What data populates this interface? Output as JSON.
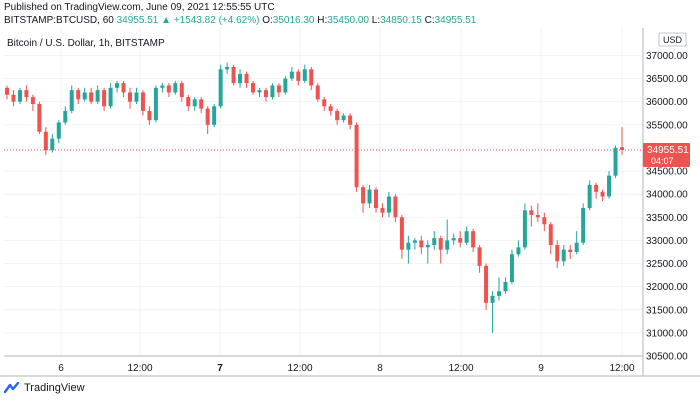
{
  "header": {
    "published": "Published on TradingView.com, June 09, 2021 12:55:55 UTC",
    "symbol_interval": "BITSTAMP:BTCUSD, 60",
    "last": "34955.51",
    "change_arrow": "▲",
    "change": "+1543.82 (+4.62%)",
    "open_label": "O:",
    "open": "35016.30",
    "high_label": "H:",
    "high": "35450.00",
    "low_label": "L:",
    "low": "34850.15",
    "close_label": "C:",
    "close": "34955.51"
  },
  "chart_title": "Bitcoin / U.S. Dollar, 1h, BITSTAMP",
  "footer": {
    "brand": "TradingView",
    "logo_icon": "tradingview-logo-icon"
  },
  "colors": {
    "up": "#26a69a",
    "down": "#ef5350",
    "price_tag": "#ef5350",
    "grid": "#f0f3fa",
    "axis_text": "#131722"
  },
  "chart_data": {
    "type": "candlestick",
    "title": "Bitcoin / U.S. Dollar, 1h, BITSTAMP",
    "currency_label": "USD",
    "ylim": [
      30500,
      37500
    ],
    "y_ticks": [
      "37000.00",
      "36500.00",
      "36000.00",
      "35500.00",
      "35000.00",
      "34500.00",
      "34000.00",
      "33500.00",
      "33000.00",
      "32500.00",
      "32000.00",
      "31500.00",
      "31000.00",
      "30500.00"
    ],
    "x_ticks": [
      "6",
      "12:00",
      "7",
      "12:00",
      "8",
      "12:00",
      "9",
      "12:00"
    ],
    "x_tick_bold": [
      false,
      false,
      true,
      false,
      false,
      false,
      false,
      false
    ],
    "last_price": "34955.51",
    "countdown": "04:07",
    "candles": [
      {
        "o": 36300,
        "c": 36150,
        "h": 36350,
        "l": 36050
      },
      {
        "o": 36150,
        "c": 36000,
        "h": 36250,
        "l": 35900
      },
      {
        "o": 36000,
        "c": 36250,
        "h": 36300,
        "l": 35950
      },
      {
        "o": 36250,
        "c": 36100,
        "h": 36350,
        "l": 36000
      },
      {
        "o": 36100,
        "c": 35950,
        "h": 36150,
        "l": 35800
      },
      {
        "o": 35950,
        "c": 35350,
        "h": 36000,
        "l": 35300
      },
      {
        "o": 35350,
        "c": 34950,
        "h": 35450,
        "l": 34850
      },
      {
        "o": 34950,
        "c": 35200,
        "h": 35300,
        "l": 34900
      },
      {
        "o": 35200,
        "c": 35550,
        "h": 35600,
        "l": 35100
      },
      {
        "o": 35550,
        "c": 35800,
        "h": 35900,
        "l": 35500
      },
      {
        "o": 35800,
        "c": 36250,
        "h": 36350,
        "l": 35750
      },
      {
        "o": 36250,
        "c": 36050,
        "h": 36300,
        "l": 35950
      },
      {
        "o": 36050,
        "c": 36200,
        "h": 36300,
        "l": 36000
      },
      {
        "o": 36200,
        "c": 36000,
        "h": 36300,
        "l": 35950
      },
      {
        "o": 36000,
        "c": 36250,
        "h": 36350,
        "l": 35950
      },
      {
        "o": 36250,
        "c": 35900,
        "h": 36300,
        "l": 35800
      },
      {
        "o": 35900,
        "c": 36300,
        "h": 36400,
        "l": 35850
      },
      {
        "o": 36300,
        "c": 36400,
        "h": 36450,
        "l": 36200
      },
      {
        "o": 36400,
        "c": 36200,
        "h": 36450,
        "l": 36100
      },
      {
        "o": 36200,
        "c": 36000,
        "h": 36300,
        "l": 35850
      },
      {
        "o": 36000,
        "c": 36200,
        "h": 36300,
        "l": 35950
      },
      {
        "o": 36200,
        "c": 35800,
        "h": 36250,
        "l": 35700
      },
      {
        "o": 35800,
        "c": 35600,
        "h": 35900,
        "l": 35500
      },
      {
        "o": 35600,
        "c": 36300,
        "h": 36350,
        "l": 35550
      },
      {
        "o": 36300,
        "c": 36350,
        "h": 36400,
        "l": 36200
      },
      {
        "o": 36350,
        "c": 36200,
        "h": 36400,
        "l": 36100
      },
      {
        "o": 36200,
        "c": 36400,
        "h": 36450,
        "l": 36150
      },
      {
        "o": 36400,
        "c": 36100,
        "h": 36450,
        "l": 36000
      },
      {
        "o": 36100,
        "c": 35900,
        "h": 36150,
        "l": 35800
      },
      {
        "o": 35900,
        "c": 36050,
        "h": 36100,
        "l": 35800
      },
      {
        "o": 36050,
        "c": 35850,
        "h": 36100,
        "l": 35750
      },
      {
        "o": 35850,
        "c": 35500,
        "h": 35900,
        "l": 35300
      },
      {
        "o": 35500,
        "c": 35900,
        "h": 35950,
        "l": 35450
      },
      {
        "o": 35900,
        "c": 36700,
        "h": 36800,
        "l": 35850
      },
      {
        "o": 36700,
        "c": 36750,
        "h": 36850,
        "l": 36600
      },
      {
        "o": 36750,
        "c": 36400,
        "h": 36800,
        "l": 36350
      },
      {
        "o": 36400,
        "c": 36600,
        "h": 36700,
        "l": 36300
      },
      {
        "o": 36600,
        "c": 36400,
        "h": 36650,
        "l": 36300
      },
      {
        "o": 36400,
        "c": 36200,
        "h": 36450,
        "l": 36150
      },
      {
        "o": 36200,
        "c": 36250,
        "h": 36300,
        "l": 36100
      },
      {
        "o": 36250,
        "c": 36100,
        "h": 36300,
        "l": 36000
      },
      {
        "o": 36100,
        "c": 36350,
        "h": 36400,
        "l": 36050
      },
      {
        "o": 36350,
        "c": 36200,
        "h": 36400,
        "l": 36100
      },
      {
        "o": 36200,
        "c": 36500,
        "h": 36550,
        "l": 36150
      },
      {
        "o": 36500,
        "c": 36650,
        "h": 36750,
        "l": 36450
      },
      {
        "o": 36650,
        "c": 36450,
        "h": 36700,
        "l": 36350
      },
      {
        "o": 36450,
        "c": 36700,
        "h": 36800,
        "l": 36400
      },
      {
        "o": 36700,
        "c": 36350,
        "h": 36750,
        "l": 36250
      },
      {
        "o": 36350,
        "c": 36050,
        "h": 36400,
        "l": 36000
      },
      {
        "o": 36050,
        "c": 35900,
        "h": 36100,
        "l": 35800
      },
      {
        "o": 35900,
        "c": 35800,
        "h": 35950,
        "l": 35700
      },
      {
        "o": 35800,
        "c": 35600,
        "h": 35850,
        "l": 35500
      },
      {
        "o": 35600,
        "c": 35700,
        "h": 35750,
        "l": 35550
      },
      {
        "o": 35700,
        "c": 35500,
        "h": 35750,
        "l": 35400
      },
      {
        "o": 35500,
        "c": 34150,
        "h": 35550,
        "l": 34050
      },
      {
        "o": 34150,
        "c": 33800,
        "h": 34200,
        "l": 33600
      },
      {
        "o": 33800,
        "c": 34100,
        "h": 34200,
        "l": 33700
      },
      {
        "o": 34100,
        "c": 33700,
        "h": 34150,
        "l": 33600
      },
      {
        "o": 33700,
        "c": 33600,
        "h": 33800,
        "l": 33500
      },
      {
        "o": 33600,
        "c": 33950,
        "h": 34050,
        "l": 33500
      },
      {
        "o": 33950,
        "c": 33500,
        "h": 34000,
        "l": 33400
      },
      {
        "o": 33500,
        "c": 32800,
        "h": 33550,
        "l": 32600
      },
      {
        "o": 32800,
        "c": 32950,
        "h": 33100,
        "l": 32500
      },
      {
        "o": 32950,
        "c": 33000,
        "h": 33050,
        "l": 32800
      },
      {
        "o": 33000,
        "c": 32850,
        "h": 33100,
        "l": 32700
      },
      {
        "o": 32850,
        "c": 32900,
        "h": 33000,
        "l": 32500
      },
      {
        "o": 32900,
        "c": 33050,
        "h": 33200,
        "l": 32800
      },
      {
        "o": 33050,
        "c": 32800,
        "h": 33100,
        "l": 32500
      },
      {
        "o": 32800,
        "c": 33000,
        "h": 33450,
        "l": 32700
      },
      {
        "o": 33000,
        "c": 33050,
        "h": 33150,
        "l": 32900
      },
      {
        "o": 33050,
        "c": 32950,
        "h": 33200,
        "l": 32850
      },
      {
        "o": 32950,
        "c": 33200,
        "h": 33300,
        "l": 32900
      },
      {
        "o": 33200,
        "c": 32850,
        "h": 33250,
        "l": 32750
      },
      {
        "o": 32850,
        "c": 32450,
        "h": 32900,
        "l": 32300
      },
      {
        "o": 32450,
        "c": 31650,
        "h": 32500,
        "l": 31500
      },
      {
        "o": 31650,
        "c": 31800,
        "h": 31900,
        "l": 31000
      },
      {
        "o": 31800,
        "c": 31900,
        "h": 32200,
        "l": 31700
      },
      {
        "o": 31900,
        "c": 32100,
        "h": 32200,
        "l": 31850
      },
      {
        "o": 32100,
        "c": 32700,
        "h": 32800,
        "l": 32050
      },
      {
        "o": 32700,
        "c": 32850,
        "h": 33000,
        "l": 32650
      },
      {
        "o": 32850,
        "c": 33650,
        "h": 33800,
        "l": 32800
      },
      {
        "o": 33650,
        "c": 33550,
        "h": 33750,
        "l": 33300
      },
      {
        "o": 33550,
        "c": 33500,
        "h": 33800,
        "l": 33400
      },
      {
        "o": 33500,
        "c": 33350,
        "h": 33600,
        "l": 33200
      },
      {
        "o": 33350,
        "c": 32900,
        "h": 33400,
        "l": 32700
      },
      {
        "o": 32900,
        "c": 32550,
        "h": 33000,
        "l": 32400
      },
      {
        "o": 32550,
        "c": 32800,
        "h": 32900,
        "l": 32450
      },
      {
        "o": 32800,
        "c": 32750,
        "h": 32900,
        "l": 32600
      },
      {
        "o": 32750,
        "c": 32950,
        "h": 33200,
        "l": 32700
      },
      {
        "o": 32950,
        "c": 33700,
        "h": 33800,
        "l": 32900
      },
      {
        "o": 33700,
        "c": 34200,
        "h": 34300,
        "l": 33650
      },
      {
        "o": 34200,
        "c": 34050,
        "h": 34250,
        "l": 33900
      },
      {
        "o": 34050,
        "c": 33950,
        "h": 34100,
        "l": 33850
      },
      {
        "o": 33950,
        "c": 34400,
        "h": 34500,
        "l": 33900
      },
      {
        "o": 34400,
        "c": 35000,
        "h": 35050,
        "l": 34350
      },
      {
        "o": 35016.3,
        "c": 34955.51,
        "h": 35450,
        "l": 34850.15
      }
    ]
  }
}
